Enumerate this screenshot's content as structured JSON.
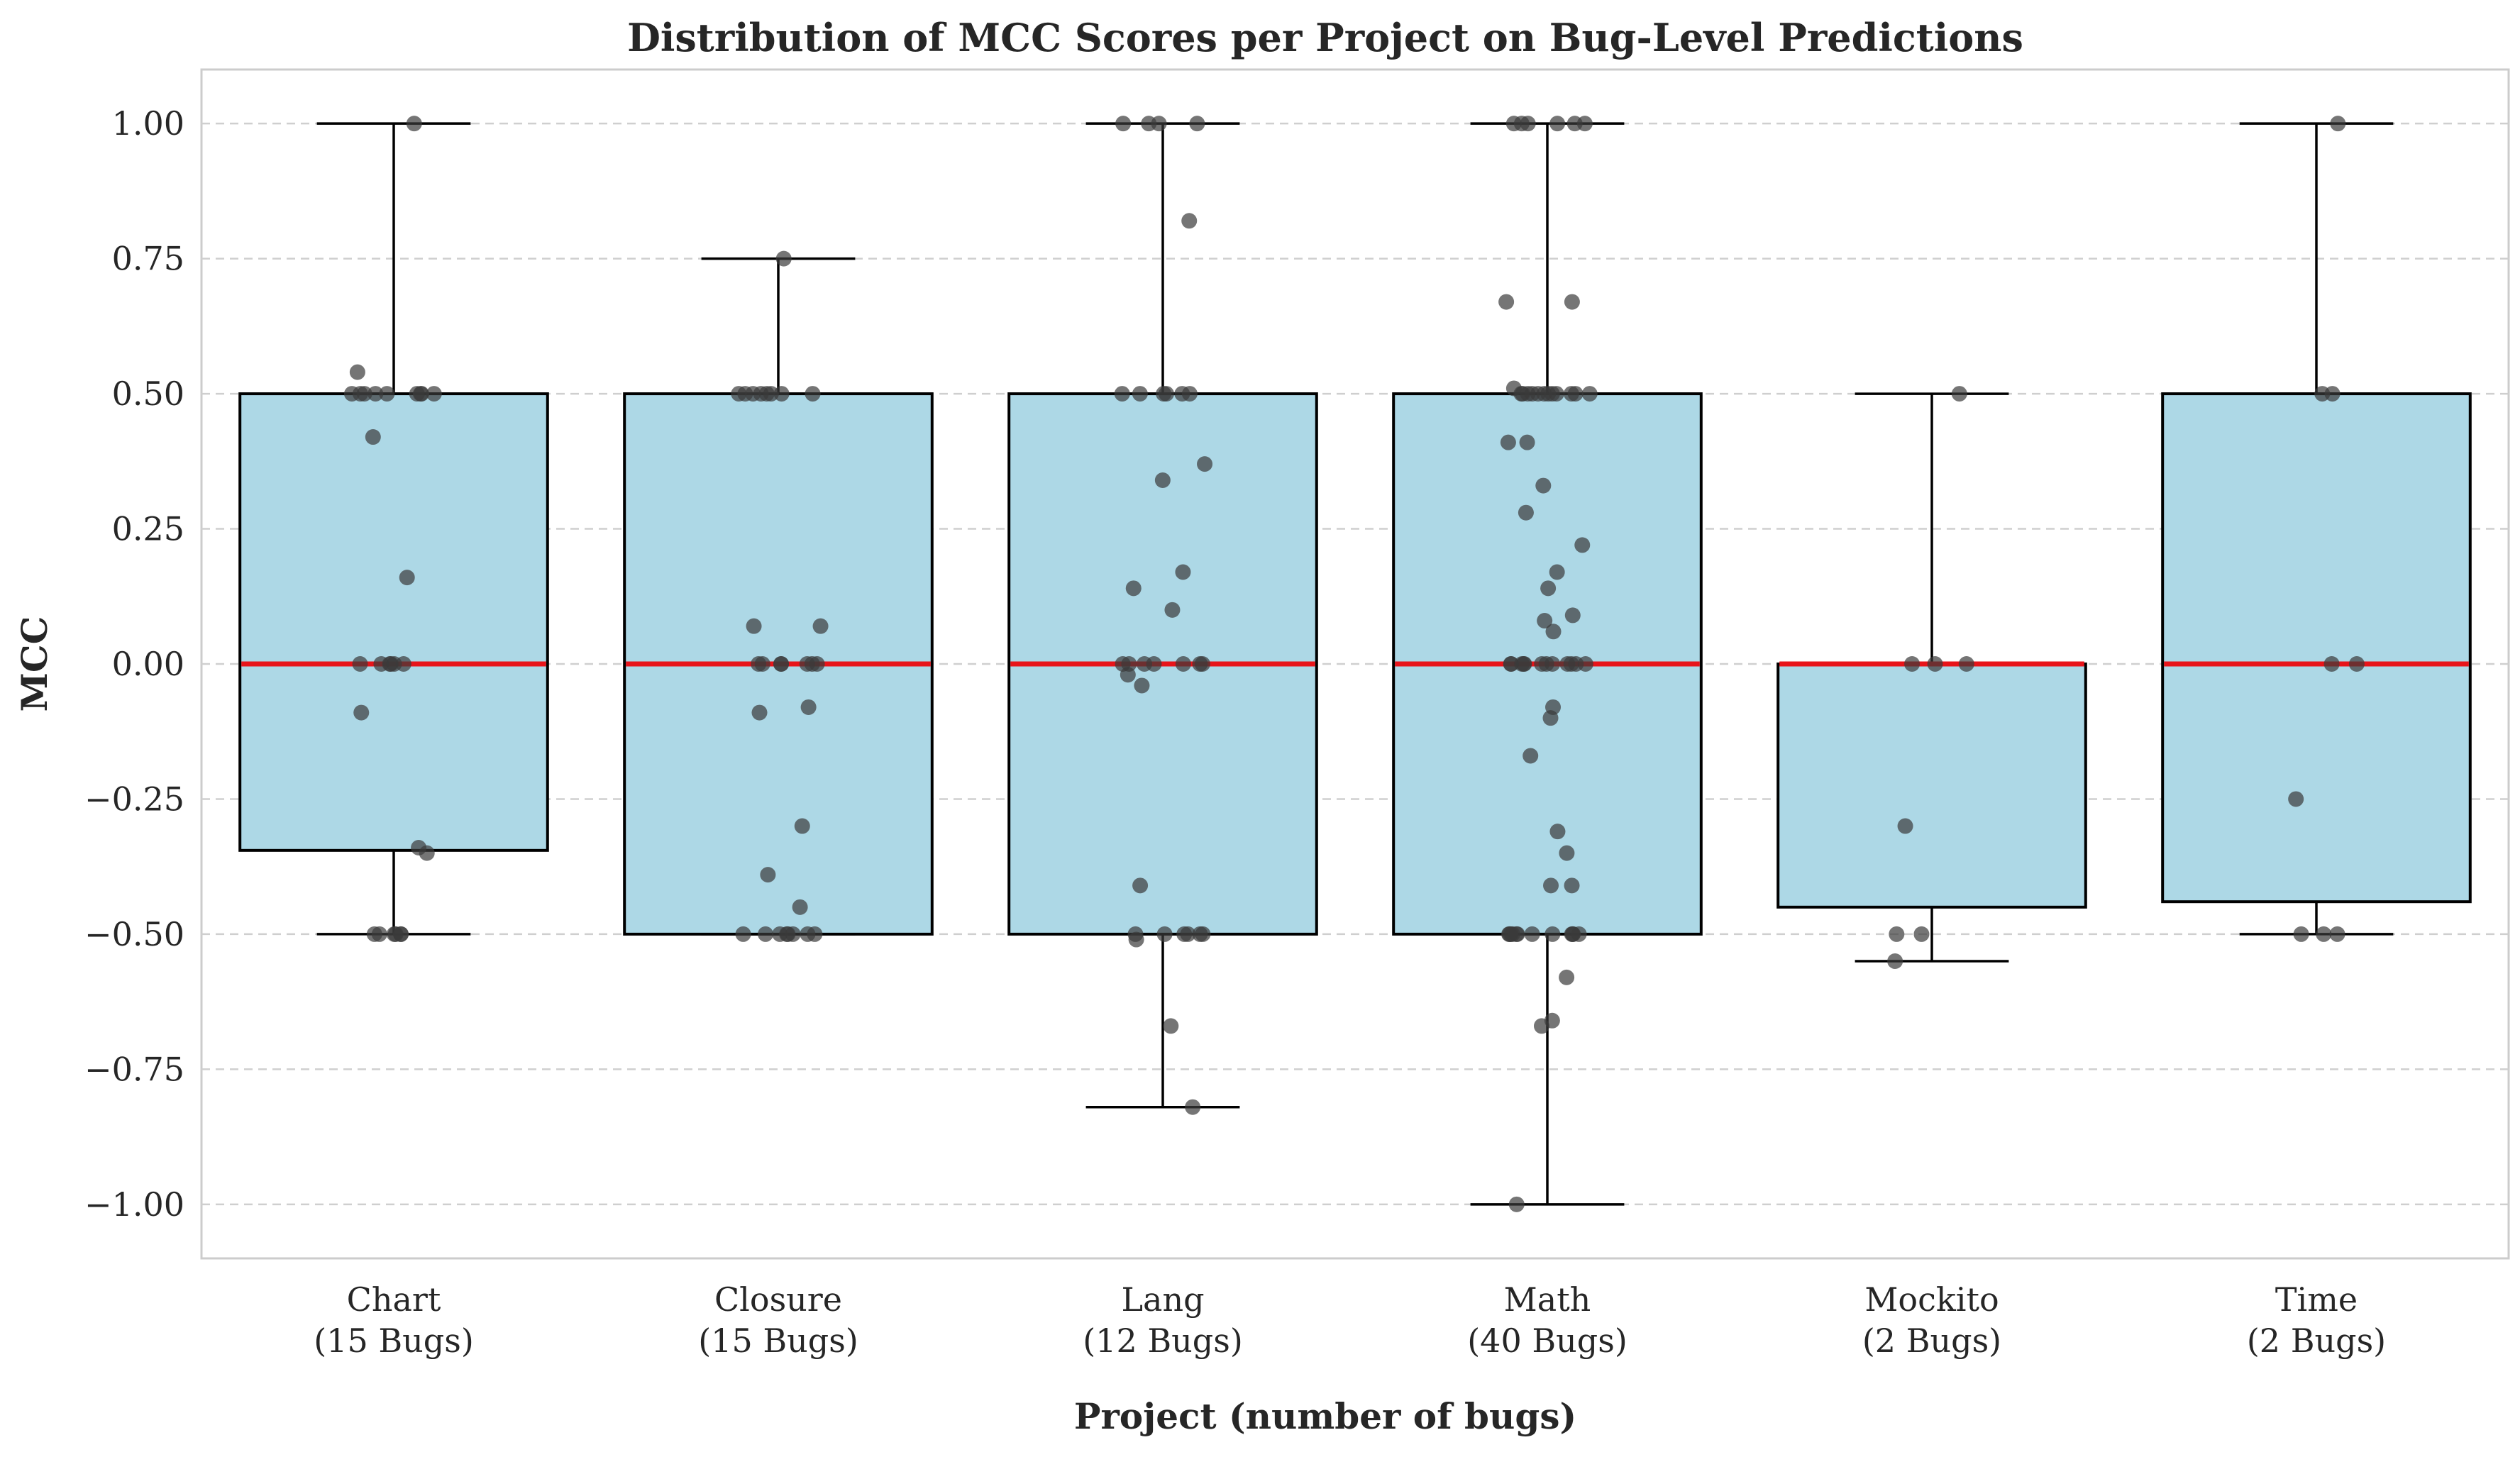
{
  "chart_data": {
    "type": "box",
    "title": "Distribution of MCC Scores per Project on Bug-Level Predictions",
    "xlabel": "Project (number of bugs)",
    "ylabel": "MCC",
    "ylim": [
      -1.1,
      1.1
    ],
    "yticks": [
      1.0,
      0.75,
      0.5,
      0.25,
      0.0,
      -0.25,
      -0.5,
      -0.75,
      -1.0
    ],
    "ytick_labels": [
      "1.00",
      "0.75",
      "0.50",
      "0.25",
      "0.00",
      "−0.25",
      "−0.50",
      "−0.75",
      "−1.00"
    ],
    "grid": "y-dashed",
    "colors": {
      "box": "#add8e6",
      "median": "#e8141a",
      "points": "#3a3a3a",
      "whisker": "#000000",
      "grid": "#cfcfcf",
      "frame": "#cccccc"
    },
    "categories": [
      {
        "name": "Chart",
        "count_label": "(15 Bugs)",
        "q1": -0.345,
        "median": 0.0,
        "q3": 0.5,
        "whisker_low": -0.5,
        "whisker_high": 1.0,
        "points": [
          1.0,
          0.54,
          0.5,
          0.5,
          0.5,
          0.5,
          0.5,
          0.5,
          0.5,
          0.5,
          0.5,
          0.42,
          0.16,
          0.0,
          0.0,
          0.0,
          0.0,
          0.0,
          0.0,
          -0.09,
          -0.34,
          -0.35,
          -0.5,
          -0.5,
          -0.5,
          -0.5,
          -0.5,
          -0.5
        ]
      },
      {
        "name": "Closure",
        "count_label": "(15 Bugs)",
        "q1": -0.5,
        "median": 0.0,
        "q3": 0.5,
        "whisker_low": -0.5,
        "whisker_high": 0.75,
        "points": [
          0.75,
          0.5,
          0.5,
          0.5,
          0.5,
          0.5,
          0.5,
          0.5,
          0.5,
          0.07,
          0.07,
          0.0,
          0.0,
          0.0,
          0.0,
          0.0,
          0.0,
          0.0,
          -0.08,
          -0.09,
          -0.3,
          -0.39,
          -0.45,
          -0.5,
          -0.5,
          -0.5,
          -0.5,
          -0.5,
          -0.5,
          -0.5,
          -0.5
        ]
      },
      {
        "name": "Lang",
        "count_label": "(12 Bugs)",
        "q1": -0.5,
        "median": 0.0,
        "q3": 0.5,
        "whisker_low": -0.82,
        "whisker_high": 1.0,
        "points": [
          1.0,
          1.0,
          1.0,
          1.0,
          0.82,
          0.5,
          0.5,
          0.5,
          0.5,
          0.5,
          0.5,
          0.37,
          0.34,
          0.17,
          0.14,
          0.1,
          0.0,
          0.0,
          0.0,
          0.0,
          0.0,
          0.0,
          0.0,
          -0.02,
          -0.04,
          -0.41,
          -0.5,
          -0.5,
          -0.5,
          -0.5,
          -0.5,
          -0.5,
          -0.51,
          -0.67,
          -0.82
        ]
      },
      {
        "name": "Math",
        "count_label": "(40 Bugs)",
        "q1": -0.5,
        "median": 0.0,
        "q3": 0.5,
        "whisker_low": -1.0,
        "whisker_high": 1.0,
        "points": [
          1.0,
          1.0,
          1.0,
          1.0,
          1.0,
          1.0,
          0.67,
          0.67,
          0.51,
          0.5,
          0.5,
          0.5,
          0.5,
          0.5,
          0.5,
          0.5,
          0.5,
          0.5,
          0.5,
          0.5,
          0.5,
          0.41,
          0.41,
          0.33,
          0.28,
          0.22,
          0.17,
          0.14,
          0.09,
          0.08,
          0.06,
          0.0,
          0.0,
          0.0,
          0.0,
          0.0,
          0.0,
          0.0,
          0.0,
          0.0,
          0.0,
          0.0,
          0.0,
          -0.08,
          -0.1,
          -0.17,
          -0.31,
          -0.35,
          -0.41,
          -0.41,
          -0.5,
          -0.5,
          -0.5,
          -0.5,
          -0.5,
          -0.5,
          -0.5,
          -0.5,
          -0.5,
          -0.5,
          -0.5,
          -0.5,
          -0.58,
          -0.66,
          -0.67,
          -1.0
        ]
      },
      {
        "name": "Mockito",
        "count_label": "(2 Bugs)",
        "q1": -0.45,
        "median": 0.0,
        "q3": 0.0,
        "whisker_low": -0.55,
        "whisker_high": 0.5,
        "points": [
          0.5,
          0.0,
          0.0,
          0.0,
          -0.3,
          -0.5,
          -0.5,
          -0.55
        ]
      },
      {
        "name": "Time",
        "count_label": "(2 Bugs)",
        "q1": -0.44,
        "median": 0.0,
        "q3": 0.5,
        "whisker_low": -0.5,
        "whisker_high": 1.0,
        "points": [
          1.0,
          0.5,
          0.5,
          0.0,
          0.0,
          -0.25,
          -0.5,
          -0.5,
          -0.5
        ]
      }
    ]
  }
}
